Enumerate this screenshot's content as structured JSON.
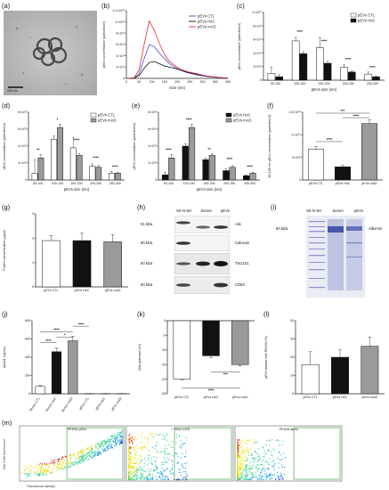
{
  "panels": {
    "a": {
      "label": "(a)",
      "scale_bar": "200 nm"
    },
    "b": {
      "label": "(b)"
    },
    "c": {
      "label": "(c)"
    },
    "d": {
      "label": "(d)"
    },
    "e": {
      "label": "(e)"
    },
    "f": {
      "label": "(f)"
    },
    "g": {
      "label": "(g)"
    },
    "h": {
      "label": "(h)"
    },
    "i": {
      "label": "(i)"
    },
    "j": {
      "label": "(j)"
    },
    "k": {
      "label": "(k)"
    },
    "l": {
      "label": "(l)"
    },
    "m": {
      "label": "(m)"
    }
  },
  "colors": {
    "ctl": "#ffffff",
    "hec": "#111111",
    "mad": "#9a9a9a",
    "line_ctl": "#3b4fd6",
    "line_hec": "#111111",
    "line_mad": "#e0302a"
  },
  "blot_h": {
    "lanes": [
      "SK-N-SH",
      "Serum",
      "pEVs"
    ],
    "rows": [
      {
        "kda": "91 kDa",
        "protein": "Alix"
      },
      {
        "kda": "90 kDa",
        "protein": "Calnexin"
      },
      {
        "kda": "50 kDa",
        "protein": "TSG101"
      },
      {
        "kda": "50 kDa",
        "protein": "CD63"
      }
    ]
  },
  "gel_i": {
    "lanes": [
      "SK-N-SH",
      "Serum",
      "pEVs"
    ],
    "kda": "60 kDa",
    "protein": "Albumin"
  },
  "flow_m": {
    "plots": [
      {
        "tag": "PKH26-pEVs"
      },
      {
        "tag": "+ Triton X100"
      },
      {
        "tag": "PKH26 alone"
      }
    ],
    "ylabel": "Side of the fluorescence",
    "xlabel": "Fluorescence intensity"
  },
  "chart_data": [
    {
      "id": "b",
      "type": "line",
      "xlabel": "Size (nm)",
      "ylabel": "pEVs concentration (particles/ml)",
      "xlim": [
        0,
        400
      ],
      "ylim": [
        0,
        12000000000.0
      ],
      "xticks": [
        "0",
        "50",
        "100",
        "150",
        "200",
        "250",
        "300",
        "350",
        "400"
      ],
      "yticks": [
        "0",
        "2×10⁹",
        "4×10⁹",
        "6×10⁹",
        "8×10⁹",
        "1×10¹⁰",
        "1.2×10¹⁰"
      ],
      "legend": "top-right",
      "x": [
        0,
        30,
        50,
        70,
        90,
        110,
        130,
        150,
        170,
        190,
        210,
        240,
        280,
        320,
        360,
        400
      ],
      "series": [
        {
          "name": "pEVs CTL",
          "values": [
            0,
            0.05,
            0.8,
            3.5,
            6.0,
            5.6,
            4.5,
            3.5,
            2.6,
            2.0,
            1.5,
            1.0,
            0.6,
            0.3,
            0.15,
            0.05
          ]
        },
        {
          "name": "pEVs HeC",
          "values": [
            0,
            0.05,
            0.5,
            1.8,
            2.8,
            3.0,
            2.6,
            2.2,
            2.0,
            1.8,
            1.5,
            1.1,
            0.7,
            0.4,
            0.2,
            0.05
          ]
        },
        {
          "name": "pEVs mAD",
          "values": [
            0,
            0.1,
            1.5,
            6.0,
            10.2,
            8.5,
            6.2,
            4.2,
            3.0,
            2.3,
            1.7,
            1.2,
            0.8,
            0.4,
            0.2,
            0.05
          ]
        }
      ]
    },
    {
      "id": "c",
      "type": "bar",
      "xlabel": "pEVs size (nm)",
      "ylabel": "pEVs concentration (particles/ml)",
      "ylim": [
        0,
        10000000000.0
      ],
      "yticks": [
        "0",
        "2×10⁹",
        "4×10⁹",
        "6×10⁹",
        "8×10⁹",
        "1×10¹⁰"
      ],
      "categories": [
        "50-100",
        "100-150",
        "150-200",
        "200-250",
        "250-300"
      ],
      "legend": "top-right",
      "series": [
        {
          "name": "pEVs CTL",
          "values": [
            1.0,
            5.8,
            4.8,
            1.9,
            0.9
          ],
          "err": [
            0.9,
            0.5,
            1.5,
            0.4,
            0.3
          ]
        },
        {
          "name": "pEVs HeC",
          "values": [
            0.5,
            3.9,
            2.5,
            1.2,
            0.5
          ],
          "err": [
            0.3,
            0.3,
            0.3,
            0.2,
            0.1
          ]
        }
      ],
      "annotations": [
        "****",
        "****",
        "****",
        "****"
      ]
    },
    {
      "id": "d",
      "type": "bar",
      "xlabel": "pEVs size (nm)",
      "ylabel": "pEVs concentration (particles/ml)",
      "ylim": [
        0,
        8000000000.0
      ],
      "yticks": [
        "0",
        "2×10⁹",
        "4×10⁹",
        "6×10⁹",
        "8×10⁹"
      ],
      "categories": [
        "50-100",
        "100-150",
        "150-200",
        "200-250",
        "250-300"
      ],
      "legend": "top-right",
      "series": [
        {
          "name": "pEVs CTL",
          "values": [
            0.8,
            4.8,
            3.8,
            1.6,
            0.8
          ],
          "err": [
            1.6,
            0.4,
            1.2,
            0.3,
            0.2
          ]
        },
        {
          "name": "pEVs mAD",
          "values": [
            2.6,
            6.2,
            2.9,
            1.5,
            0.8
          ],
          "err": [
            0.4,
            0.4,
            0.2,
            0.2,
            0.1
          ]
        }
      ],
      "annotations": [
        "**",
        "*",
        "****",
        "****",
        "****"
      ]
    },
    {
      "id": "e",
      "type": "bar",
      "xlabel": "pEVs size (nm)",
      "ylabel": "pEVs concentration (particles/ml)",
      "ylim": [
        0,
        8000000000.0
      ],
      "yticks": [
        "0",
        "2×10⁹",
        "4×10⁹",
        "6×10⁹",
        "8×10⁹"
      ],
      "categories": [
        "50-100",
        "100-150",
        "150-200",
        "200-250",
        "250-300"
      ],
      "legend": "top-right",
      "series": [
        {
          "name": "pEVs HeC",
          "values": [
            0.6,
            4.0,
            2.4,
            1.1,
            0.5
          ],
          "err": [
            0.3,
            0.3,
            0.2,
            0.2,
            0.1
          ]
        },
        {
          "name": "pEVs mAD",
          "values": [
            2.6,
            6.2,
            2.9,
            1.5,
            0.8
          ],
          "err": [
            0.4,
            0.4,
            0.2,
            0.2,
            0.1
          ]
        }
      ],
      "annotations": [
        "****",
        "****",
        "**",
        "****",
        "****"
      ]
    },
    {
      "id": "f",
      "type": "bar",
      "ylabel": "50-150 nm pEVs concentration (particles/ml)",
      "ylim": [
        0,
        15000000000.0
      ],
      "yticks": [
        "0",
        "5×10⁹",
        "1×10¹⁰",
        "1.5×10¹⁰"
      ],
      "categories": [
        "pEVs CTL",
        "pEVs HeC",
        "pEVs mAD"
      ],
      "values": [
        6.8,
        2.9,
        12.5
      ],
      "err": [
        0.6,
        0.3,
        0.8
      ],
      "annotations": [
        "****",
        "****",
        "***"
      ]
    },
    {
      "id": "g",
      "type": "bar",
      "ylabel": "Protein concentration (µg/µl)",
      "ylim": [
        0,
        3
      ],
      "yticks": [
        "0",
        "1",
        "2",
        "3"
      ],
      "categories": [
        "pEVs CTL",
        "pEVs HeC",
        "pEVs mAD"
      ],
      "values": [
        1.9,
        1.9,
        1.85
      ],
      "err": [
        0.2,
        0.3,
        0.3
      ]
    },
    {
      "id": "j",
      "type": "bar",
      "ylabel": "ApoA1 (ng/mL)",
      "ylim": [
        0,
        800
      ],
      "yticks": [
        "0",
        "200",
        "400",
        "600",
        "800"
      ],
      "categories": [
        "Serum CTL",
        "Serum HeC",
        "Serum mAD",
        "pEVs CTL",
        "pEVs HeC",
        "pEVs mAD"
      ],
      "values": [
        80,
        460,
        580,
        2,
        2,
        2
      ],
      "err": [
        10,
        40,
        50,
        1,
        1,
        1
      ],
      "annotations": [
        "****",
        "****",
        "*",
        "****"
      ]
    },
    {
      "id": "k",
      "type": "bar",
      "ylabel": "Zeta potential (mV)",
      "ylim": [
        -25,
        0
      ],
      "yticks": [
        "0",
        "-5",
        "-10",
        "-15",
        "-20",
        "-25"
      ],
      "categories": [
        "pEVs CTL",
        "pEVs HeC",
        "pEVs mAD"
      ],
      "values": [
        -20,
        -12,
        -15
      ],
      "err": [
        0.3,
        0.6,
        0.5
      ],
      "annotations": [
        "***",
        "****"
      ]
    },
    {
      "id": "l",
      "type": "bar",
      "ylabel": "pEVs labeled with PKH26 (%)",
      "ylim": [
        0,
        40
      ],
      "yticks": [
        "0",
        "10",
        "20",
        "30",
        "40"
      ],
      "categories": [
        "pEVs CTL",
        "pEVs HeC",
        "pEVs mAD"
      ],
      "values": [
        16,
        20,
        26
      ],
      "err": [
        7,
        4,
        5
      ]
    }
  ]
}
